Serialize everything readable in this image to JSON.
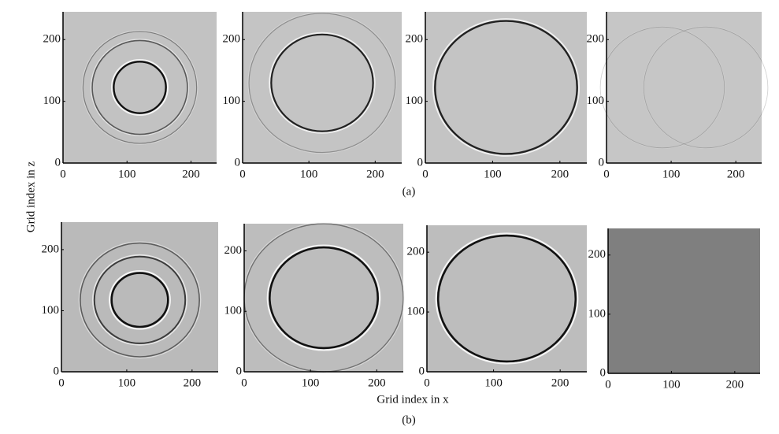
{
  "chart_data": [
    {
      "type": "image",
      "color": "#c2c2c2",
      "xlim": [
        0,
        240
      ],
      "ylim": [
        0,
        245
      ],
      "xticks": [
        0,
        100,
        200
      ],
      "yticks": [
        0,
        100,
        200
      ]
    },
    {
      "type": "image",
      "color": "#c4c4c4",
      "xlim": [
        0,
        240
      ],
      "ylim": [
        0,
        245
      ],
      "xticks": [
        0,
        100,
        200
      ],
      "yticks": [
        0,
        100,
        200
      ]
    },
    {
      "type": "image",
      "color": "#c4c4c4",
      "xlim": [
        0,
        240
      ],
      "ylim": [
        0,
        245
      ],
      "xticks": [
        0,
        100,
        200
      ],
      "yticks": [
        0,
        100,
        200
      ]
    },
    {
      "type": "image",
      "color": "#c6c6c6",
      "xlim": [
        0,
        240
      ],
      "ylim": [
        0,
        245
      ],
      "xticks": [
        0,
        100,
        200
      ],
      "yticks": [
        0,
        100,
        200
      ]
    },
    {
      "type": "image",
      "color": "#bababa",
      "xlim": [
        0,
        240
      ],
      "ylim": [
        0,
        245
      ],
      "xticks": [
        0,
        100,
        200
      ],
      "yticks": [
        0,
        100,
        200
      ]
    },
    {
      "type": "image",
      "color": "#bdbdbd",
      "xlim": [
        0,
        240
      ],
      "ylim": [
        0,
        245
      ],
      "xticks": [
        0,
        100,
        200
      ],
      "yticks": [
        0,
        100,
        200
      ]
    },
    {
      "type": "image",
      "color": "#bdbdbd",
      "xlim": [
        0,
        240
      ],
      "ylim": [
        0,
        245
      ],
      "xticks": [
        0,
        100,
        200
      ],
      "yticks": [
        0,
        100,
        200
      ]
    },
    {
      "type": "image",
      "color": "#7f7f7f",
      "xlim": [
        0,
        240
      ],
      "ylim": [
        0,
        245
      ],
      "xticks": [
        0,
        100,
        200
      ],
      "yticks": [
        0,
        100,
        200
      ]
    }
  ],
  "figure": {
    "ylabel": "Grid index in z",
    "xlabel": "Grid index in x",
    "captions": [
      "(a)",
      "(b)"
    ]
  }
}
